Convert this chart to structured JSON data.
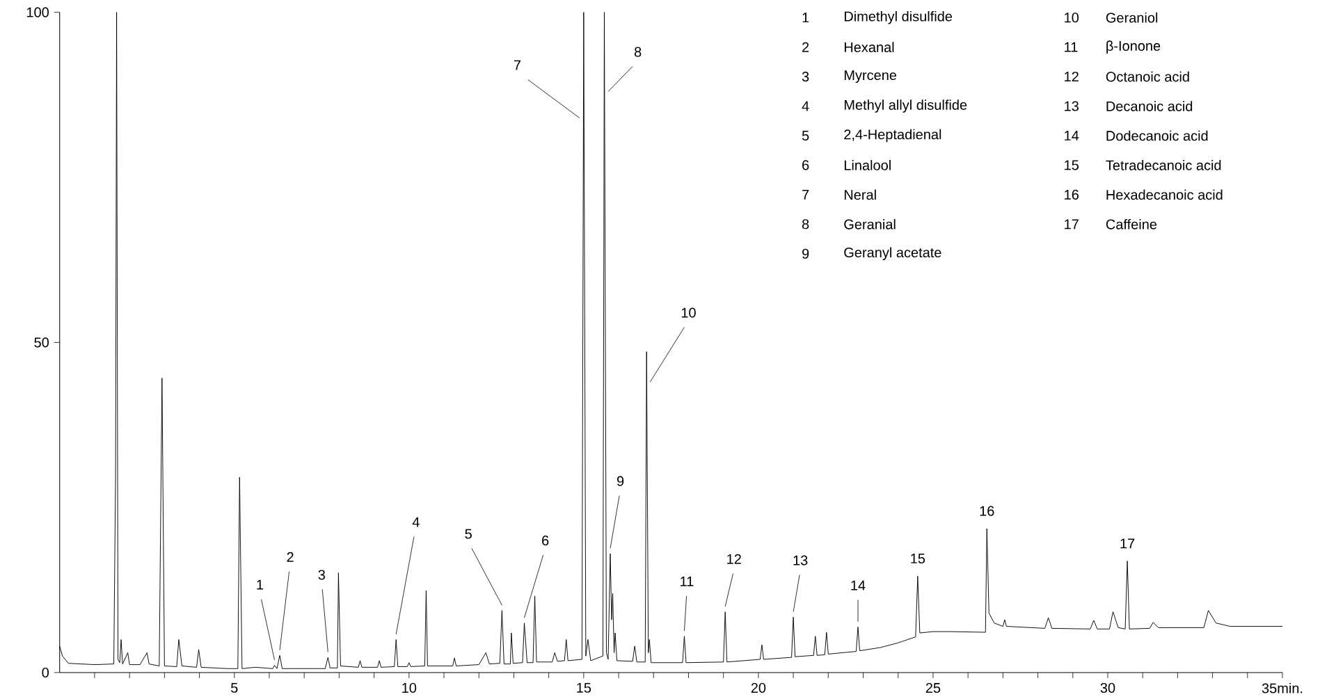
{
  "chart_data": {
    "type": "line",
    "color": "#000000",
    "xlim": [
      0,
      35
    ],
    "ylim": [
      0,
      100
    ],
    "xticks": [
      {
        "value": 1,
        "label": null
      },
      {
        "value": 2,
        "label": null
      },
      {
        "value": 3,
        "label": null
      },
      {
        "value": 4,
        "label": null
      },
      5,
      {
        "value": 6,
        "label": null
      },
      {
        "value": 7,
        "label": null
      },
      {
        "value": 8,
        "label": null
      },
      {
        "value": 9,
        "label": null
      },
      10,
      {
        "value": 11,
        "label": null
      },
      {
        "value": 12,
        "label": null
      },
      {
        "value": 13,
        "label": null
      },
      {
        "value": 14,
        "label": null
      },
      15,
      {
        "value": 16,
        "label": null
      },
      {
        "value": 17,
        "label": null
      },
      {
        "value": 18,
        "label": null
      },
      {
        "value": 19,
        "label": null
      },
      20,
      {
        "value": 21,
        "label": null
      },
      {
        "value": 22,
        "label": null
      },
      {
        "value": 23,
        "label": null
      },
      {
        "value": 24,
        "label": null
      },
      25,
      {
        "value": 26,
        "label": null
      },
      {
        "value": 27,
        "label": null
      },
      {
        "value": 28,
        "label": null
      },
      {
        "value": 29,
        "label": null
      },
      30,
      {
        "value": 31,
        "label": null
      },
      {
        "value": 32,
        "label": null
      },
      {
        "value": 33,
        "label": null
      },
      {
        "value": 34,
        "label": null
      },
      {
        "value": 35,
        "label": "35min."
      }
    ],
    "yticks": [
      0,
      50,
      100
    ],
    "x": [
      0,
      0.08,
      0.25,
      1.0,
      1.55,
      1.6,
      1.63,
      1.67,
      1.72,
      1.76,
      1.8,
      1.95,
      2.0,
      2.3,
      2.5,
      2.56,
      2.85,
      2.93,
      3.0,
      3.35,
      3.41,
      3.5,
      3.92,
      3.98,
      4.05,
      4.8,
      5.1,
      5.15,
      5.22,
      5.6,
      6.1,
      6.15,
      6.22,
      6.3,
      6.37,
      7.6,
      7.68,
      7.74,
      7.95,
      7.98,
      8.04,
      8.55,
      8.6,
      8.65,
      9.1,
      9.15,
      9.2,
      9.58,
      9.63,
      9.68,
      9.95,
      10.0,
      10.05,
      10.45,
      10.49,
      10.53,
      11.25,
      11.3,
      11.35,
      12.0,
      12.2,
      12.3,
      12.6,
      12.66,
      12.72,
      12.9,
      12.93,
      12.98,
      13.25,
      13.3,
      13.38,
      13.55,
      13.6,
      13.65,
      14.1,
      14.17,
      14.25,
      14.45,
      14.5,
      14.55,
      14.95,
      15.0,
      15.06,
      15.12,
      15.2,
      15.55,
      15.59,
      15.65,
      15.7,
      15.76,
      15.8,
      15.83,
      15.87,
      15.9,
      15.95,
      16.4,
      16.46,
      16.52,
      16.76,
      16.8,
      16.85,
      16.88,
      16.93,
      17.83,
      17.88,
      17.93,
      19.0,
      19.05,
      19.1,
      20.05,
      20.1,
      20.15,
      20.95,
      21.0,
      21.05,
      21.58,
      21.63,
      21.68,
      21.9,
      21.95,
      22.0,
      22.8,
      22.85,
      22.9,
      23.5,
      24.0,
      24.5,
      24.56,
      24.62,
      25.0,
      25.5,
      26.5,
      26.54,
      26.6,
      26.75,
      27.0,
      27.05,
      27.1,
      28.2,
      28.3,
      28.4,
      29.5,
      29.6,
      29.7,
      30.05,
      30.15,
      30.3,
      30.5,
      30.56,
      30.62,
      31.2,
      31.3,
      31.45,
      32.75,
      32.88,
      33.1,
      33.5,
      35
    ],
    "values": [
      4,
      2.5,
      1.4,
      1.2,
      1.3,
      30,
      100,
      2,
      1.5,
      5,
      1.3,
      3,
      1.2,
      1.2,
      3,
      1.3,
      1,
      44.6,
      1,
      0.9,
      5,
      1,
      0.8,
      3.5,
      0.8,
      0.6,
      0.6,
      29.6,
      0.6,
      0.8,
      0.6,
      1.1,
      0.6,
      2.6,
      0.6,
      0.6,
      2.3,
      0.7,
      0.7,
      15.1,
      1.0,
      0.8,
      1.8,
      0.8,
      0.8,
      1.8,
      0.8,
      0.9,
      5,
      0.9,
      0.9,
      1.5,
      0.9,
      1.0,
      12.4,
      1.0,
      1.0,
      2.2,
      1.0,
      1.2,
      3,
      1.3,
      1.4,
      9.4,
      1.3,
      1.3,
      6,
      1.4,
      1.5,
      7.5,
      1.5,
      1.5,
      11.6,
      1.6,
      1.6,
      3,
      1.7,
      1.8,
      5,
      1.8,
      2,
      100,
      2.5,
      5,
      1.8,
      2.5,
      100,
      3,
      2,
      18,
      8,
      12,
      3,
      6,
      1.8,
      1.7,
      4,
      1.6,
      1.6,
      48.6,
      3,
      5,
      1.5,
      1.5,
      5.5,
      1.5,
      1.6,
      9.2,
      1.6,
      2,
      4.2,
      2,
      2.3,
      8.4,
      2.4,
      2.6,
      5.5,
      2.6,
      2.7,
      6.1,
      2.8,
      3.2,
      6.9,
      3.3,
      3.8,
      4.5,
      5.4,
      14.6,
      6.0,
      6.2,
      6.2,
      6.1,
      21.8,
      9,
      7.5,
      7,
      8,
      7,
      6.7,
      8.3,
      6.7,
      6.6,
      7.9,
      6.6,
      6.6,
      9.2,
      6.8,
      6.6,
      16.9,
      6.6,
      6.7,
      7.6,
      6.8,
      6.8,
      9.4,
      7.5,
      7,
      7
    ],
    "annotations": [
      {
        "text": "1",
        "x": 6.15,
        "y": 1.1
      },
      {
        "text": "2",
        "x": 6.3,
        "y": 2.6
      },
      {
        "text": "3",
        "x": 7.68,
        "y": 2.3
      },
      {
        "text": "4",
        "x": 9.63,
        "y": 5
      },
      {
        "text": "5",
        "x": 12.66,
        "y": 9.4
      },
      {
        "text": "6",
        "x": 13.3,
        "y": 7.5
      },
      "7",
      "8",
      {
        "text": "9",
        "x": 15.76,
        "y": 18
      },
      "10",
      {
        "text": "11",
        "x": 17.88,
        "y": 5.5
      },
      {
        "text": "12",
        "x": 19.05,
        "y": 9.2
      },
      {
        "text": "13",
        "x": 21.0,
        "y": 8.4
      },
      {
        "text": "14",
        "x": 22.85,
        "y": 6.9
      },
      {
        "text": "15",
        "x": 24.56,
        "y": 14.6
      },
      {
        "text": "16",
        "x": 26.54,
        "y": 21.8
      },
      {
        "text": "17",
        "x": 30.56,
        "y": 16.9
      },
      "1",
      "Dimethyl disulfide",
      "2",
      "Hexanal",
      "3",
      "Myrcene",
      "4",
      "Methyl allyl disulfide",
      "5",
      "2,4-Heptadienal",
      "6",
      "Linalool",
      "7",
      "Neral",
      "8",
      "Geranial",
      "9",
      "Geranyl acetate",
      "10",
      "Geraniol",
      "11",
      "β-Ionone",
      "12",
      "Octanoic acid",
      "13",
      "Decanoic acid",
      "14",
      "Dodecanoic acid",
      "15",
      "Tetradecanoic acid",
      "16",
      "Hexadecanoic acid",
      "17",
      "Caffeine"
    ]
  }
}
